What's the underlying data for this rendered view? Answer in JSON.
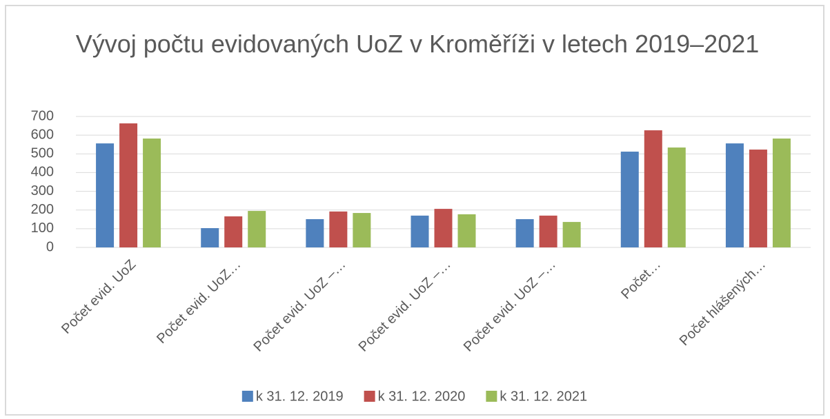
{
  "chart_data": {
    "type": "bar",
    "title": "Vývoj počtu evidovaných UoZ v Kroměříži v letech 2019–2021",
    "categories": [
      "Počet evid. UoZ",
      "Počet evid. UoZ…",
      "Počet evid. UoZ –…",
      "Počet evid. UoZ –…",
      "Počet evid. UoZ –…",
      "Počet…",
      "Počet hlášených…"
    ],
    "series": [
      {
        "name": "k 31. 12. 2019",
        "color": "#4f81bd",
        "values": [
          556,
          103,
          151,
          170,
          151,
          512,
          556
        ]
      },
      {
        "name": "k 31. 12. 2020",
        "color": "#c0504d",
        "values": [
          663,
          166,
          192,
          206,
          170,
          626,
          523
        ]
      },
      {
        "name": "k 31. 12. 2021",
        "color": "#9bbb59",
        "values": [
          582,
          195,
          184,
          177,
          136,
          534,
          582
        ]
      }
    ],
    "ylim": [
      0,
      700
    ],
    "yticks": [
      0,
      100,
      200,
      300,
      400,
      500,
      600,
      700
    ],
    "grid": true,
    "legend": "bottom"
  }
}
